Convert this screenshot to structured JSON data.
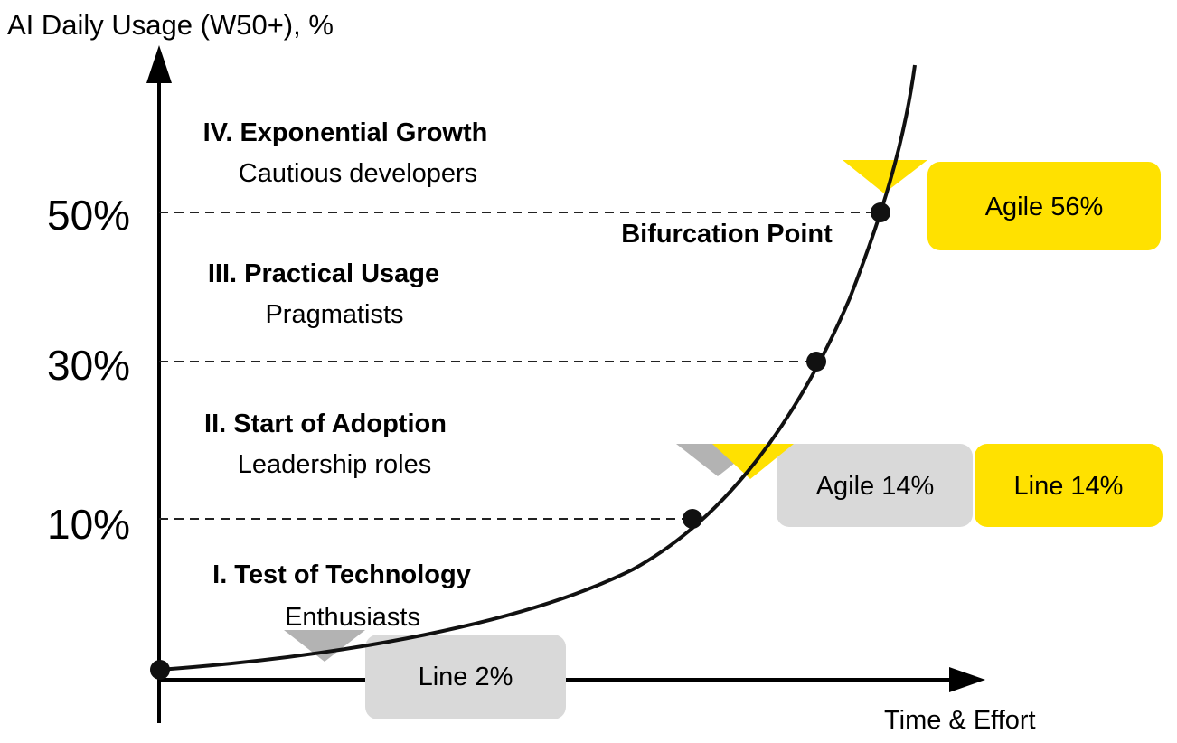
{
  "diagram": {
    "y_axis_title": "AI Daily Usage (W50+), %",
    "x_axis_title": "Time & Effort",
    "ticks": [
      "50%",
      "30%",
      "10%"
    ],
    "stages": [
      {
        "title": "IV. Exponential Growth",
        "subtitle": "Cautious developers"
      },
      {
        "title": "III. Practical Usage",
        "subtitle": "Pragmatists"
      },
      {
        "title": "II. Start of Adoption",
        "subtitle": "Leadership roles"
      },
      {
        "title": "I. Test of Technology",
        "subtitle": "Enthusiasts"
      }
    ],
    "bifurcation_label": "Bifurcation Point",
    "callouts": {
      "agile_56": {
        "label": "Agile 56%",
        "color": "#ffe100"
      },
      "agile_14": {
        "label": "Agile 14%",
        "color": "#d9d9d9"
      },
      "line_14": {
        "label": "Line 14%",
        "color": "#ffe100"
      },
      "line_2": {
        "label": "Line 2%",
        "color": "#d9d9d9"
      }
    },
    "colors": {
      "yellow": "#ffe100",
      "gray": "#d9d9d9",
      "gray_marker": "#b3b3b3",
      "curve": "#111111"
    }
  }
}
